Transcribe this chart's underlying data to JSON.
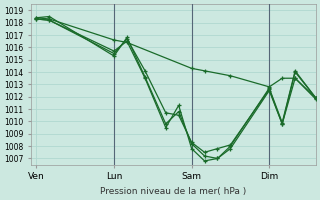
{
  "xlabel": "Pression niveau de la mer( hPa )",
  "bg_color": "#cce8e0",
  "grid_color": "#b0d8d0",
  "line_color": "#1a6b2a",
  "ylim": [
    1006.5,
    1019.5
  ],
  "yticks": [
    1007,
    1008,
    1009,
    1010,
    1011,
    1012,
    1013,
    1014,
    1015,
    1016,
    1017,
    1018,
    1019
  ],
  "xtick_labels": [
    "Ven",
    "Lun",
    "Sam",
    "Dim"
  ],
  "xtick_positions": [
    0,
    30,
    60,
    90
  ],
  "vlines_x": [
    30,
    60,
    90
  ],
  "plot_xlim": [
    -2,
    108
  ],
  "lines": [
    {
      "x": [
        0,
        5,
        30,
        35,
        60,
        65,
        75,
        90,
        95,
        100,
        108
      ],
      "y": [
        1018.4,
        1018.3,
        1016.6,
        1016.4,
        1014.3,
        1014.1,
        1013.7,
        1012.8,
        1013.5,
        1013.5,
        1011.9
      ]
    },
    {
      "x": [
        0,
        5,
        30,
        35,
        42,
        50,
        55,
        60,
        65,
        70,
        75,
        90,
        95,
        100,
        108
      ],
      "y": [
        1018.3,
        1018.2,
        1015.5,
        1016.7,
        1014.1,
        1010.7,
        1010.5,
        1008.3,
        1007.5,
        1007.8,
        1008.1,
        1012.6,
        1009.8,
        1013.5,
        1011.8
      ]
    },
    {
      "x": [
        0,
        5,
        30,
        35,
        42,
        50,
        55,
        60,
        65,
        70,
        75,
        90,
        95,
        100,
        108
      ],
      "y": [
        1018.4,
        1018.5,
        1015.3,
        1016.8,
        1013.6,
        1009.8,
        1010.8,
        1008.2,
        1007.2,
        1007.0,
        1008.0,
        1012.7,
        1009.9,
        1014.1,
        1011.9
      ]
    },
    {
      "x": [
        0,
        5,
        30,
        35,
        42,
        50,
        55,
        60,
        65,
        70,
        75,
        90,
        95,
        100,
        108
      ],
      "y": [
        1018.3,
        1018.2,
        1015.7,
        1016.5,
        1013.5,
        1009.5,
        1011.3,
        1007.8,
        1006.8,
        1007.0,
        1007.8,
        1012.5,
        1009.8,
        1014.0,
        1011.9
      ]
    }
  ]
}
